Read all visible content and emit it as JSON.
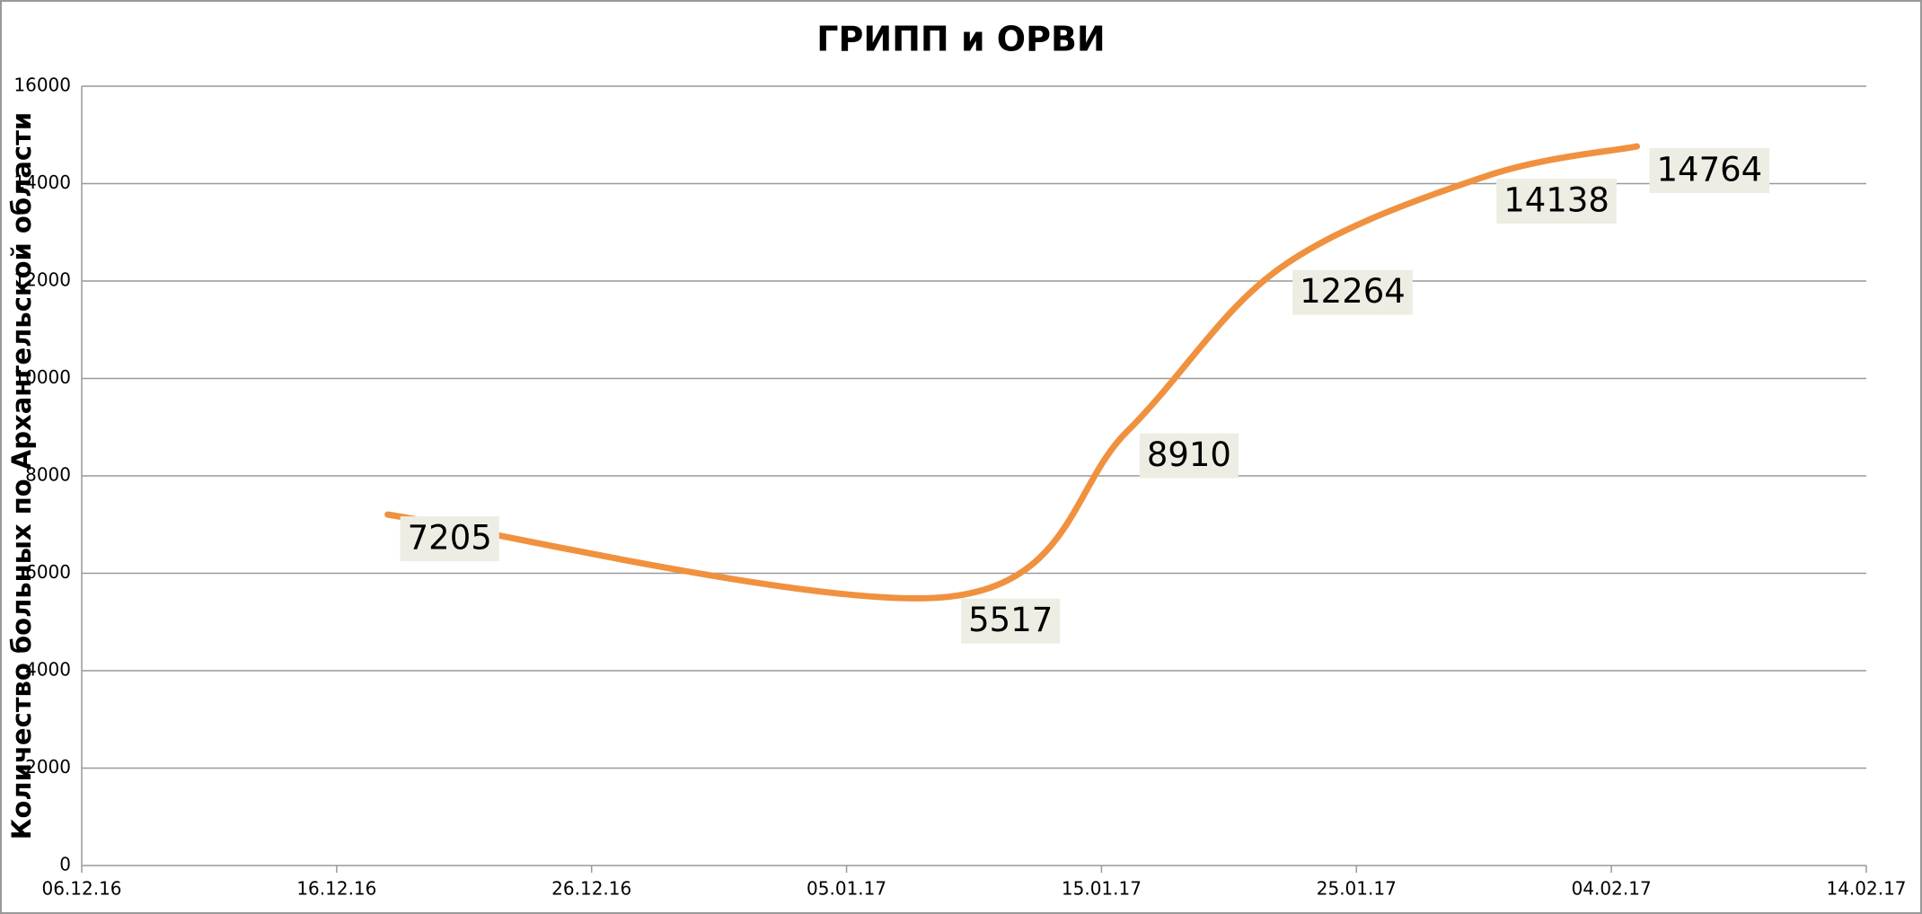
{
  "chart_data": {
    "type": "line",
    "title": "ГРИПП и ОРВИ",
    "y_label": "Количество больных по Архангельской области",
    "x": [
      "18.12.16",
      "09.01.17",
      "16.01.17",
      "22.01.17",
      "30.01.17",
      "05.02.17"
    ],
    "series": [
      {
        "color": "#f0913f",
        "values": [
          7205,
          5517,
          8910,
          12264,
          14138,
          14764
        ]
      }
    ],
    "xlim": [
      "06.12.16",
      "14.02.17"
    ],
    "xticks": [
      "06.12.16",
      "16.12.16",
      "26.12.16",
      "05.01.17",
      "15.01.17",
      "25.01.17",
      "04.02.17",
      "14.02.17"
    ],
    "ylim": [
      0,
      16000
    ],
    "yticks": [
      0,
      2000,
      4000,
      6000,
      8000,
      10000,
      12000,
      14000,
      16000
    ],
    "grid": true,
    "smooth": true
  }
}
